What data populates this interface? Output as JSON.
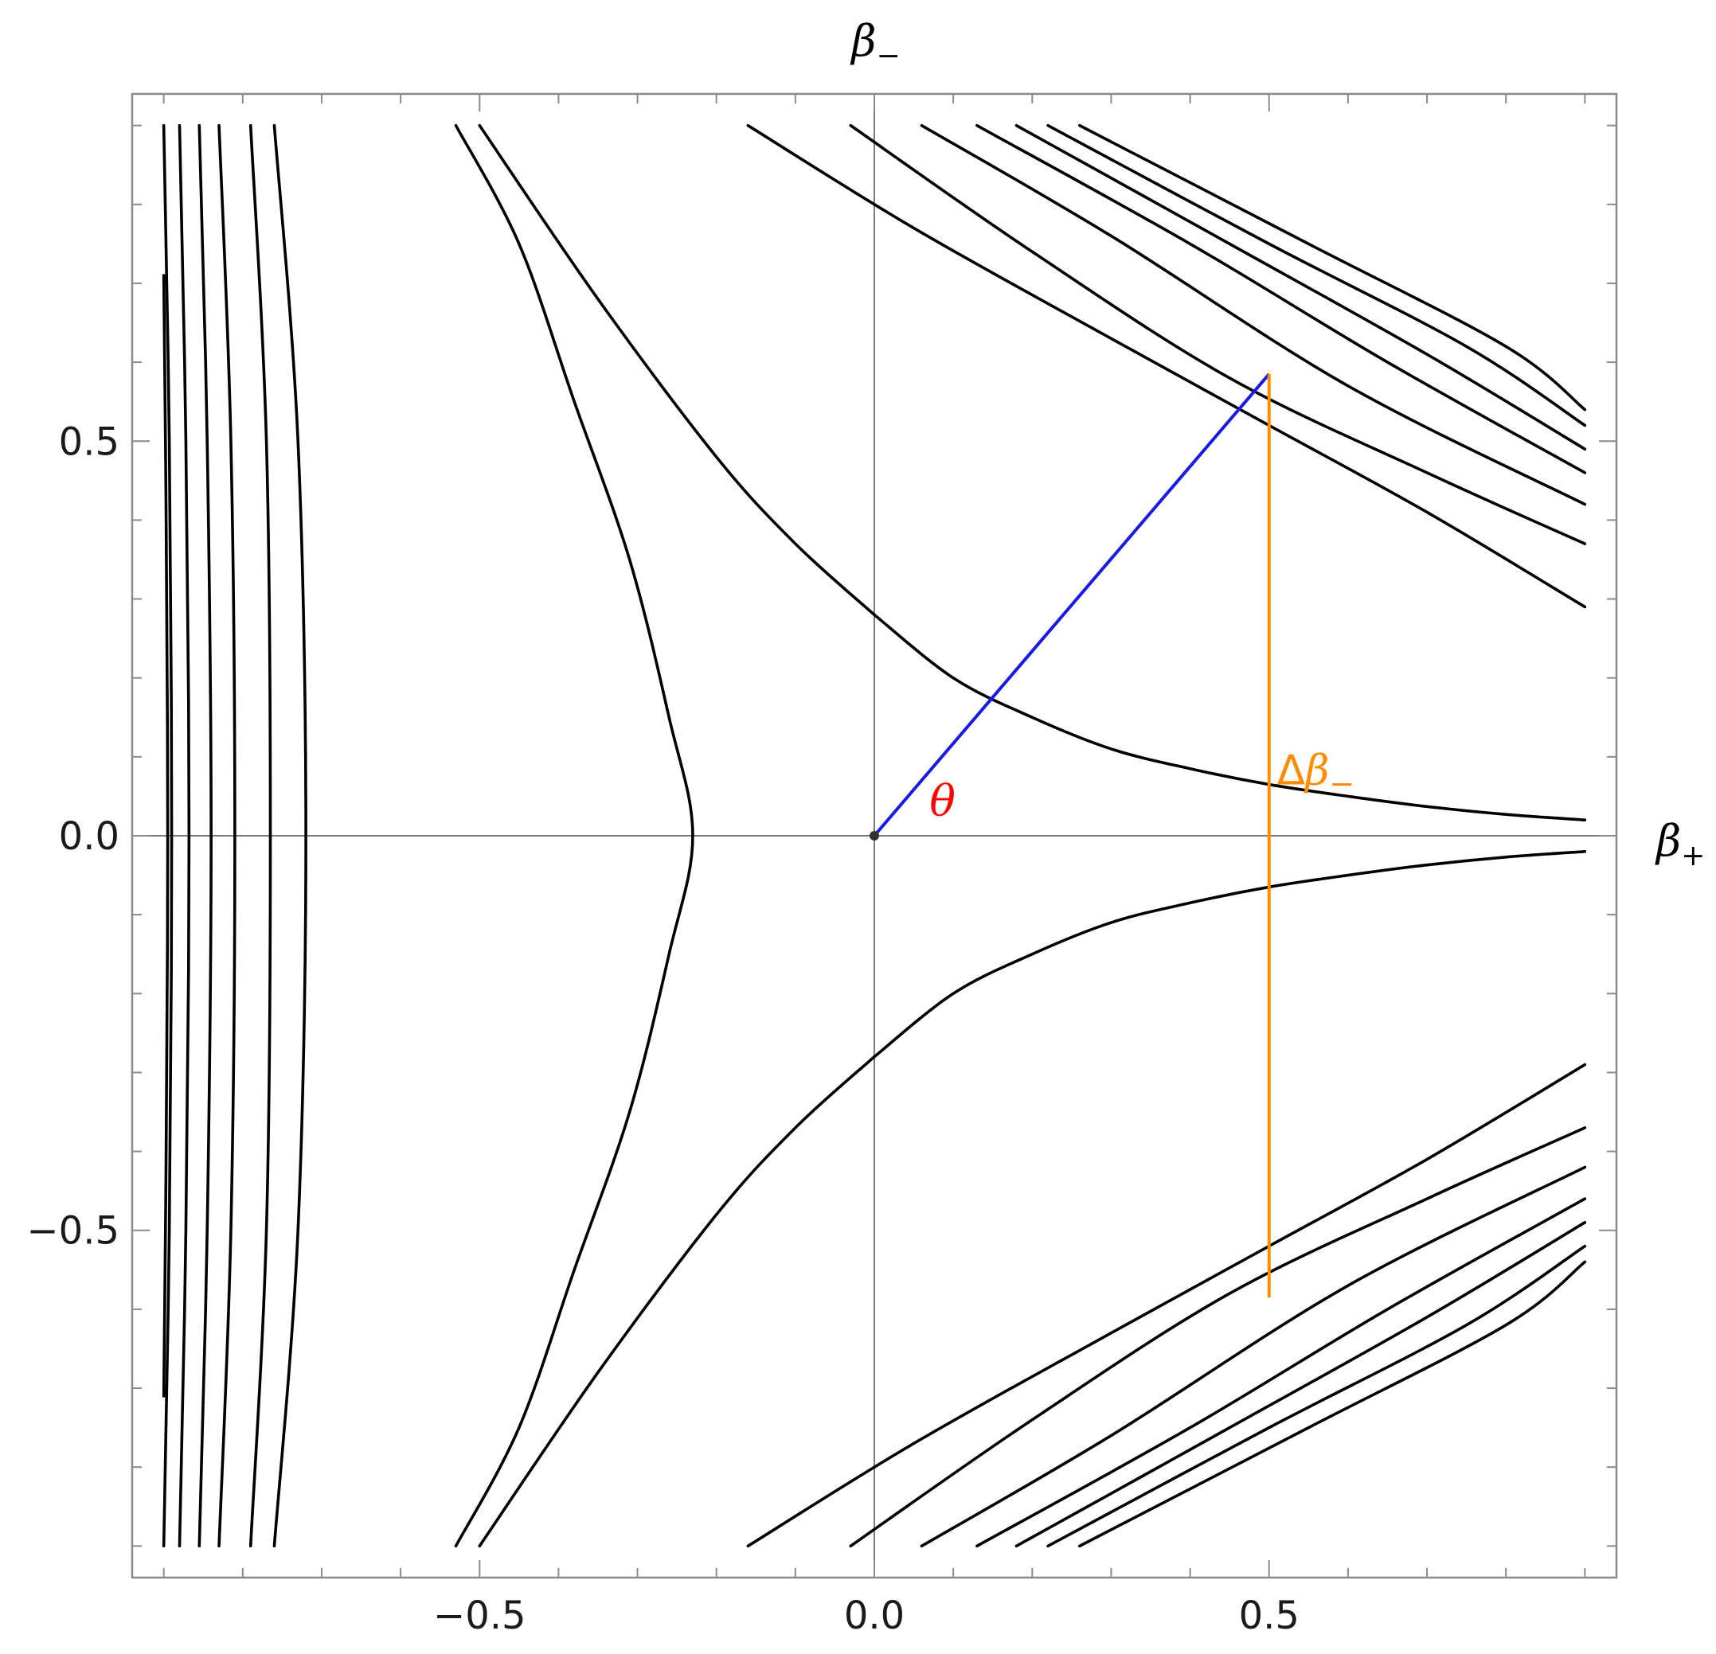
{
  "chart_data": {
    "type": "contour",
    "xlabel": "β₊",
    "ylabel": "β₋",
    "xlim": [
      -0.94,
      0.94
    ],
    "ylim": [
      -0.94,
      0.94
    ],
    "x_ticks": [
      -0.5,
      0.0,
      0.5
    ],
    "x_tick_labels": [
      "−0.5",
      "0.0",
      "0.5"
    ],
    "y_ticks": [
      -0.5,
      0.0,
      0.5
    ],
    "y_tick_labels": [
      "−0.5",
      "0.0",
      "0.5"
    ],
    "minor_tick_step": 0.1,
    "grid": false,
    "origin_axes": true,
    "series": [
      {
        "kind": "contour-family",
        "color": "#000000",
        "points": [
          [
            [
              0.0,
              0.28
            ],
            [
              0.1,
              0.2
            ],
            [
              0.2,
              0.15
            ],
            [
              0.3,
              0.11
            ],
            [
              0.4,
              0.085
            ],
            [
              0.5,
              0.065
            ],
            [
              0.6,
              0.05
            ],
            [
              0.7,
              0.037
            ],
            [
              0.8,
              0.027
            ],
            [
              0.9,
              0.02
            ]
          ],
          [
            [
              0.0,
              -0.28
            ],
            [
              0.1,
              -0.2
            ],
            [
              0.2,
              -0.15
            ],
            [
              0.3,
              -0.11
            ],
            [
              0.4,
              -0.085
            ],
            [
              0.5,
              -0.065
            ],
            [
              0.6,
              -0.05
            ],
            [
              0.7,
              -0.037
            ],
            [
              0.8,
              -0.027
            ],
            [
              0.9,
              -0.02
            ]
          ],
          [
            [
              -0.53,
              0.9
            ],
            [
              -0.45,
              0.75
            ],
            [
              -0.38,
              0.55
            ],
            [
              -0.31,
              0.35
            ],
            [
              -0.26,
              0.15
            ],
            [
              -0.23,
              0.0
            ],
            [
              -0.26,
              -0.15
            ],
            [
              -0.31,
              -0.35
            ],
            [
              -0.38,
              -0.55
            ],
            [
              -0.45,
              -0.75
            ],
            [
              -0.53,
              -0.9
            ]
          ],
          [
            [
              -0.5,
              0.9
            ],
            [
              -0.35,
              0.68
            ],
            [
              -0.2,
              0.48
            ],
            [
              -0.1,
              0.37
            ],
            [
              0.0,
              0.28
            ]
          ],
          [
            [
              -0.5,
              -0.9
            ],
            [
              -0.35,
              -0.68
            ],
            [
              -0.2,
              -0.48
            ],
            [
              -0.1,
              -0.37
            ],
            [
              0.0,
              -0.28
            ]
          ],
          [
            [
              -0.16,
              0.9
            ],
            [
              0.05,
              0.77
            ],
            [
              0.3,
              0.63
            ],
            [
              0.5,
              0.52
            ],
            [
              0.7,
              0.41
            ],
            [
              0.9,
              0.29
            ]
          ],
          [
            [
              -0.16,
              -0.9
            ],
            [
              0.05,
              -0.77
            ],
            [
              0.3,
              -0.63
            ],
            [
              0.5,
              -0.52
            ],
            [
              0.7,
              -0.41
            ],
            [
              0.9,
              -0.29
            ]
          ],
          [
            [
              -0.03,
              0.9
            ],
            [
              0.2,
              0.74
            ],
            [
              0.45,
              0.58
            ],
            [
              0.7,
              0.46
            ],
            [
              0.9,
              0.37
            ]
          ],
          [
            [
              -0.03,
              -0.9
            ],
            [
              0.2,
              -0.74
            ],
            [
              0.45,
              -0.58
            ],
            [
              0.7,
              -0.46
            ],
            [
              0.9,
              -0.37
            ]
          ],
          [
            [
              0.06,
              0.9
            ],
            [
              0.3,
              0.76
            ],
            [
              0.6,
              0.57
            ],
            [
              0.9,
              0.42
            ]
          ],
          [
            [
              0.06,
              -0.9
            ],
            [
              0.3,
              -0.76
            ],
            [
              0.6,
              -0.57
            ],
            [
              0.9,
              -0.42
            ]
          ],
          [
            [
              0.13,
              0.9
            ],
            [
              0.4,
              0.75
            ],
            [
              0.65,
              0.6
            ],
            [
              0.9,
              0.46
            ]
          ],
          [
            [
              0.13,
              -0.9
            ],
            [
              0.4,
              -0.75
            ],
            [
              0.65,
              -0.6
            ],
            [
              0.9,
              -0.46
            ]
          ],
          [
            [
              0.18,
              0.9
            ],
            [
              0.45,
              0.75
            ],
            [
              0.7,
              0.61
            ],
            [
              0.9,
              0.49
            ]
          ],
          [
            [
              0.18,
              -0.9
            ],
            [
              0.45,
              -0.75
            ],
            [
              0.7,
              -0.61
            ],
            [
              0.9,
              -0.49
            ]
          ],
          [
            [
              0.22,
              0.9
            ],
            [
              0.5,
              0.75
            ],
            [
              0.75,
              0.62
            ],
            [
              0.9,
              0.52
            ]
          ],
          [
            [
              0.22,
              -0.9
            ],
            [
              0.5,
              -0.75
            ],
            [
              0.75,
              -0.62
            ],
            [
              0.9,
              -0.52
            ]
          ],
          [
            [
              0.26,
              0.9
            ],
            [
              0.55,
              0.75
            ],
            [
              0.8,
              0.62
            ],
            [
              0.9,
              0.54
            ]
          ],
          [
            [
              0.26,
              -0.9
            ],
            [
              0.55,
              -0.75
            ],
            [
              0.8,
              -0.62
            ],
            [
              0.9,
              -0.54
            ]
          ],
          [
            [
              -0.76,
              0.9
            ],
            [
              -0.73,
              0.5
            ],
            [
              -0.72,
              0.0
            ],
            [
              -0.73,
              -0.5
            ],
            [
              -0.76,
              -0.9
            ]
          ],
          [
            [
              -0.79,
              0.9
            ],
            [
              -0.77,
              0.5
            ],
            [
              -0.765,
              0.0
            ],
            [
              -0.77,
              -0.5
            ],
            [
              -0.79,
              -0.9
            ]
          ],
          [
            [
              -0.83,
              0.9
            ],
            [
              -0.815,
              0.5
            ],
            [
              -0.81,
              0.0
            ],
            [
              -0.815,
              -0.5
            ],
            [
              -0.83,
              -0.9
            ]
          ],
          [
            [
              -0.855,
              0.9
            ],
            [
              -0.845,
              0.5
            ],
            [
              -0.84,
              0.0
            ],
            [
              -0.845,
              -0.5
            ],
            [
              -0.855,
              -0.9
            ]
          ],
          [
            [
              -0.88,
              0.9
            ],
            [
              -0.872,
              0.5
            ],
            [
              -0.868,
              0.0
            ],
            [
              -0.872,
              -0.5
            ],
            [
              -0.88,
              -0.9
            ]
          ],
          [
            [
              -0.9,
              0.9
            ],
            [
              -0.893,
              0.5
            ],
            [
              -0.89,
              0.0
            ],
            [
              -0.893,
              -0.5
            ],
            [
              -0.9,
              -0.9
            ]
          ],
          [
            [
              -0.9,
              0.71
            ],
            [
              -0.897,
              0.4
            ],
            [
              -0.895,
              0.0
            ],
            [
              -0.897,
              -0.4
            ],
            [
              -0.9,
              -0.71
            ]
          ]
        ]
      },
      {
        "kind": "segment",
        "color": "#1a1ae6",
        "points": [
          [
            0.0,
            0.0
          ],
          [
            0.5,
            0.585
          ]
        ]
      },
      {
        "kind": "segment",
        "color": "#ff8c00",
        "points": [
          [
            0.5,
            0.585
          ],
          [
            0.5,
            -0.585
          ]
        ]
      }
    ],
    "origin_marker": [
      0.0,
      0.0
    ],
    "annotations": [
      {
        "text": "θ",
        "color": "#ff0000",
        "x": 0.07,
        "y": 0.025
      },
      {
        "text": "Δβ",
        "subscript": "−",
        "color": "#ff8c00",
        "x": 0.51,
        "y": 0.065
      }
    ]
  }
}
